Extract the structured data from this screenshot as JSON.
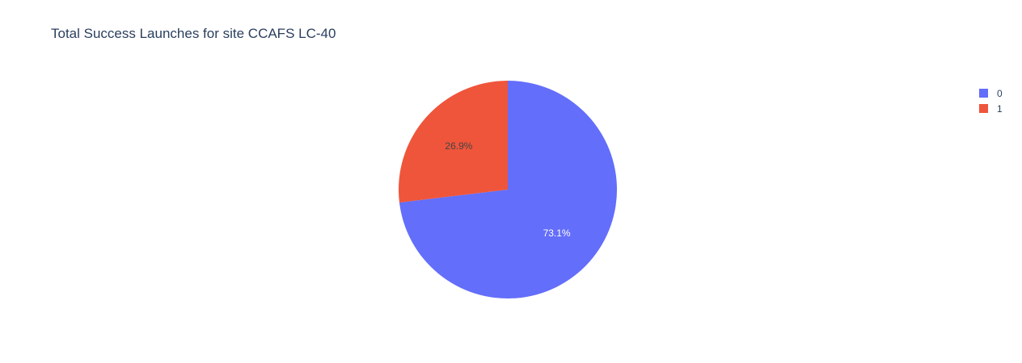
{
  "chart_data": {
    "type": "pie",
    "title": "Total Success Launches for site CCAFS LC-40",
    "labels": [
      "0",
      "1"
    ],
    "values": [
      73.1,
      26.9
    ],
    "percent_labels": [
      "73.1%",
      "26.9%"
    ],
    "colors": [
      "#636efa",
      "#ef553b"
    ],
    "label_colors": [
      "#ffffff",
      "#444444"
    ],
    "direction": "clockwise",
    "start_angle_deg": 90,
    "legend_position": "top-right"
  }
}
